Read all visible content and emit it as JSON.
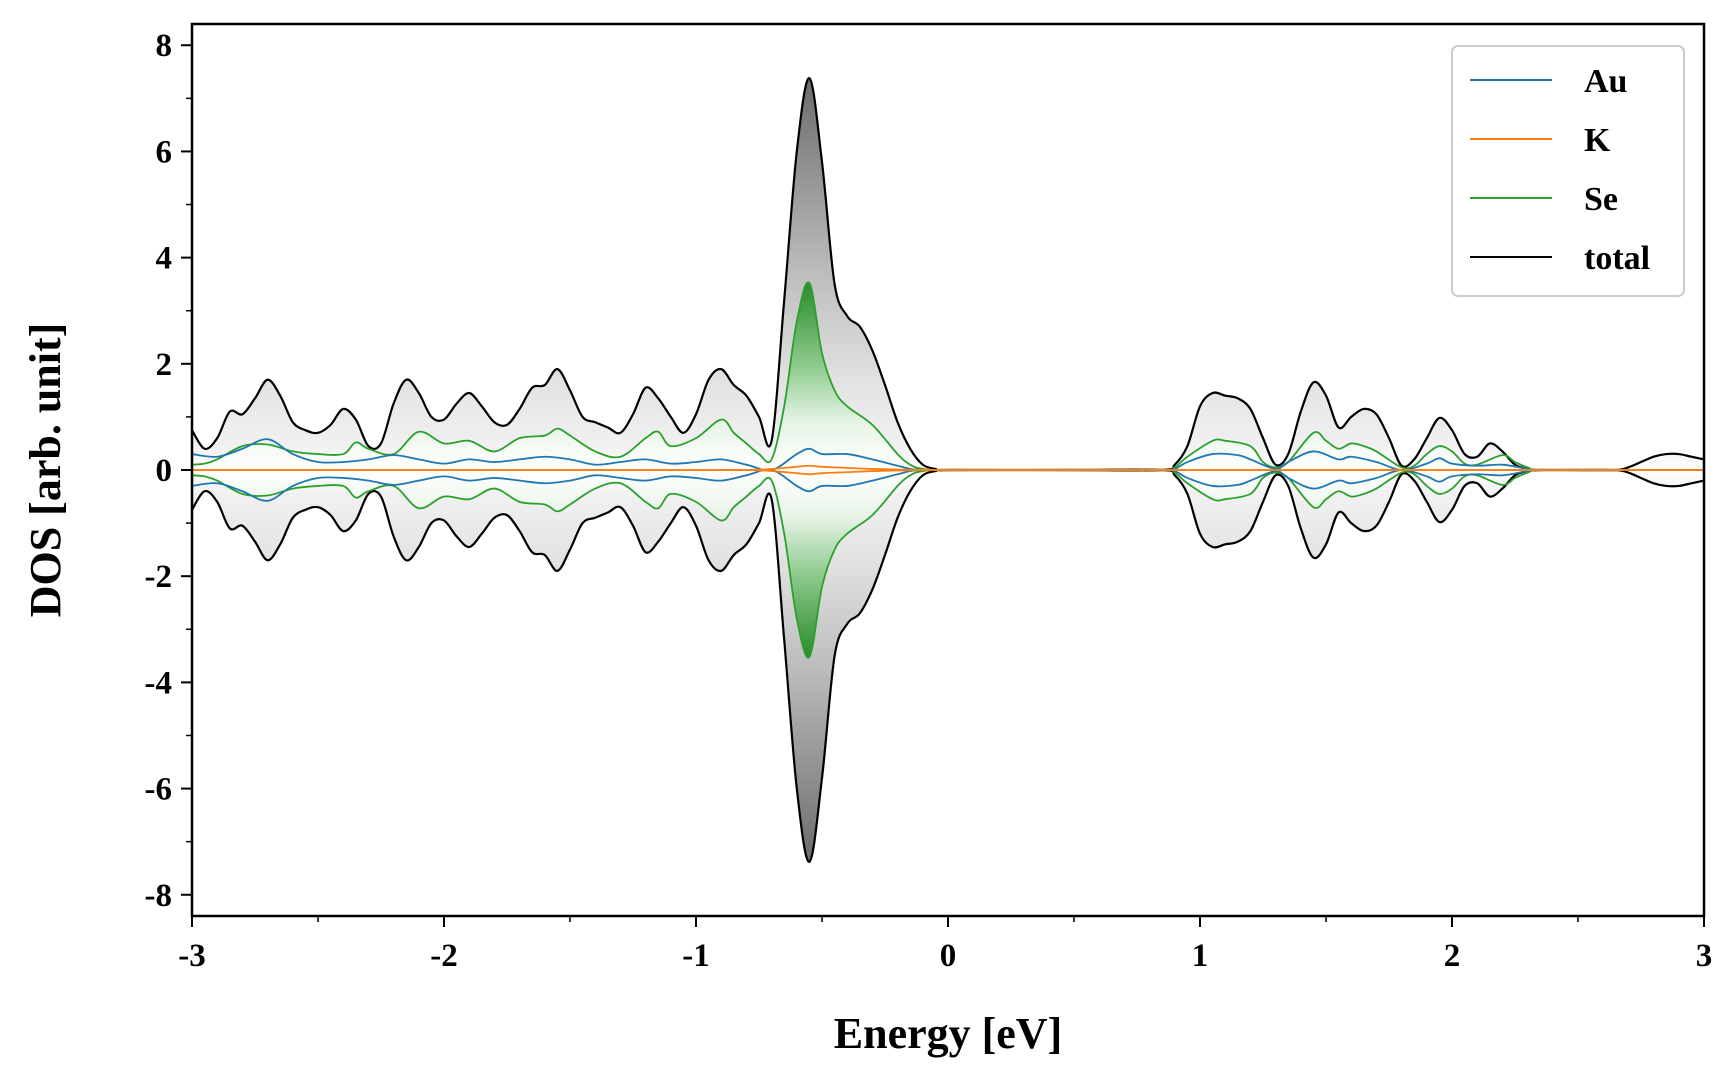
{
  "chart_data": {
    "type": "line",
    "title": "",
    "xlabel": "Energy [eV]",
    "ylabel": "DOS [arb. unit]",
    "xlim": [
      -3,
      3
    ],
    "ylim": [
      -8.4,
      8.4
    ],
    "x_ticks": [
      -3,
      -2,
      -1,
      0,
      1,
      2,
      3
    ],
    "x_tick_labels": [
      "-3",
      "-2",
      "-1",
      "0",
      "1",
      "2",
      "3"
    ],
    "y_ticks": [
      -8,
      -6,
      -4,
      -2,
      0,
      2,
      4,
      6,
      8
    ],
    "y_tick_labels": [
      "-8",
      "-6",
      "-4",
      "-2",
      "0",
      "2",
      "4",
      "6",
      "8"
    ],
    "grid": false,
    "legend_position": "top-right",
    "mirrored_negative": true,
    "series": [
      {
        "name": "Au",
        "color": "#1f77b4",
        "x": [
          -3.0,
          -2.9,
          -2.8,
          -2.7,
          -2.6,
          -2.5,
          -2.4,
          -2.3,
          -2.2,
          -2.1,
          -2.0,
          -1.9,
          -1.8,
          -1.7,
          -1.6,
          -1.5,
          -1.4,
          -1.3,
          -1.2,
          -1.1,
          -1.0,
          -0.9,
          -0.8,
          -0.7,
          -0.6,
          -0.55,
          -0.5,
          -0.4,
          -0.3,
          -0.2,
          -0.15,
          -0.1,
          0.0,
          0.5,
          0.85,
          0.9,
          0.95,
          1.05,
          1.15,
          1.2,
          1.3,
          1.35,
          1.45,
          1.55,
          1.6,
          1.7,
          1.8,
          1.9,
          1.95,
          2.0,
          2.1,
          2.2,
          2.3,
          2.35,
          2.6,
          2.7,
          2.8,
          2.9,
          3.0
        ],
        "values": [
          0.3,
          0.25,
          0.4,
          0.58,
          0.3,
          0.15,
          0.15,
          0.2,
          0.28,
          0.2,
          0.12,
          0.2,
          0.15,
          0.2,
          0.25,
          0.2,
          0.1,
          0.15,
          0.2,
          0.12,
          0.15,
          0.2,
          0.1,
          0.0,
          0.3,
          0.4,
          0.3,
          0.3,
          0.2,
          0.08,
          0.02,
          0.0,
          0.0,
          0.0,
          0.0,
          0.02,
          0.15,
          0.3,
          0.28,
          0.2,
          0.02,
          0.15,
          0.35,
          0.2,
          0.25,
          0.15,
          0.0,
          0.12,
          0.22,
          0.12,
          0.08,
          0.1,
          0.02,
          0.0,
          0.0,
          0.0,
          0.0,
          0.0,
          0.0
        ]
      },
      {
        "name": "K",
        "color": "#ff7f0e",
        "x": [
          -3.0,
          -2.0,
          -1.0,
          -0.8,
          -0.7,
          -0.6,
          -0.55,
          -0.5,
          -0.4,
          -0.3,
          -0.2,
          -0.1,
          0.0,
          1.0,
          2.0,
          3.0
        ],
        "values": [
          0.0,
          0.0,
          0.0,
          0.0,
          0.02,
          0.06,
          0.08,
          0.06,
          0.04,
          0.02,
          0.01,
          0.0,
          0.0,
          0.0,
          0.0,
          0.0
        ]
      },
      {
        "name": "Se",
        "color": "#2ca02c",
        "x": [
          -3.0,
          -2.95,
          -2.9,
          -2.8,
          -2.7,
          -2.6,
          -2.5,
          -2.4,
          -2.35,
          -2.3,
          -2.2,
          -2.1,
          -2.0,
          -1.9,
          -1.8,
          -1.7,
          -1.6,
          -1.55,
          -1.5,
          -1.4,
          -1.3,
          -1.2,
          -1.15,
          -1.1,
          -1.0,
          -0.9,
          -0.85,
          -0.8,
          -0.75,
          -0.7,
          -0.65,
          -0.6,
          -0.55,
          -0.5,
          -0.45,
          -0.4,
          -0.3,
          -0.2,
          -0.15,
          -0.1,
          0.0,
          0.5,
          0.85,
          0.9,
          0.95,
          1.05,
          1.1,
          1.2,
          1.25,
          1.3,
          1.35,
          1.45,
          1.5,
          1.55,
          1.6,
          1.65,
          1.7,
          1.8,
          1.85,
          1.9,
          1.95,
          2.0,
          2.05,
          2.1,
          2.2,
          2.25,
          2.3,
          2.35,
          2.6,
          2.7,
          2.8,
          2.9,
          3.0
        ],
        "values": [
          0.1,
          0.12,
          0.2,
          0.45,
          0.48,
          0.35,
          0.3,
          0.3,
          0.52,
          0.4,
          0.3,
          0.72,
          0.5,
          0.55,
          0.35,
          0.6,
          0.65,
          0.78,
          0.65,
          0.35,
          0.25,
          0.6,
          0.72,
          0.45,
          0.6,
          0.95,
          0.7,
          0.5,
          0.3,
          0.2,
          1.2,
          2.8,
          3.52,
          2.2,
          1.5,
          1.2,
          0.85,
          0.3,
          0.1,
          0.02,
          0.0,
          0.0,
          0.0,
          0.05,
          0.25,
          0.55,
          0.55,
          0.45,
          0.15,
          0.05,
          0.15,
          0.7,
          0.55,
          0.4,
          0.5,
          0.45,
          0.35,
          0.05,
          0.08,
          0.3,
          0.45,
          0.35,
          0.12,
          0.1,
          0.28,
          0.15,
          0.05,
          0.0,
          0.0,
          0.0,
          0.0,
          0.0,
          0.0
        ]
      },
      {
        "name": "total",
        "color": "#000000",
        "x": [
          -3.0,
          -2.95,
          -2.9,
          -2.85,
          -2.8,
          -2.75,
          -2.7,
          -2.65,
          -2.6,
          -2.55,
          -2.5,
          -2.45,
          -2.4,
          -2.35,
          -2.3,
          -2.25,
          -2.2,
          -2.15,
          -2.1,
          -2.05,
          -2.0,
          -1.95,
          -1.9,
          -1.85,
          -1.8,
          -1.75,
          -1.7,
          -1.65,
          -1.6,
          -1.55,
          -1.5,
          -1.45,
          -1.4,
          -1.35,
          -1.3,
          -1.25,
          -1.2,
          -1.15,
          -1.1,
          -1.05,
          -1.0,
          -0.95,
          -0.9,
          -0.85,
          -0.8,
          -0.75,
          -0.7,
          -0.65,
          -0.6,
          -0.55,
          -0.5,
          -0.45,
          -0.4,
          -0.35,
          -0.3,
          -0.25,
          -0.2,
          -0.15,
          -0.1,
          -0.05,
          0.0,
          0.5,
          0.85,
          0.9,
          0.95,
          1.0,
          1.05,
          1.1,
          1.15,
          1.2,
          1.25,
          1.3,
          1.35,
          1.4,
          1.45,
          1.5,
          1.55,
          1.6,
          1.65,
          1.7,
          1.75,
          1.8,
          1.85,
          1.9,
          1.95,
          2.0,
          2.05,
          2.1,
          2.15,
          2.2,
          2.25,
          2.3,
          2.35,
          2.5,
          2.65,
          2.7,
          2.75,
          2.8,
          2.85,
          2.9,
          2.95,
          3.0
        ],
        "values": [
          0.75,
          0.4,
          0.6,
          1.1,
          1.05,
          1.35,
          1.7,
          1.4,
          0.9,
          0.75,
          0.7,
          0.85,
          1.15,
          0.95,
          0.45,
          0.5,
          1.25,
          1.7,
          1.45,
          1.0,
          0.95,
          1.25,
          1.45,
          1.2,
          0.9,
          0.85,
          1.15,
          1.55,
          1.6,
          1.9,
          1.5,
          1.0,
          0.9,
          0.8,
          0.7,
          1.05,
          1.55,
          1.35,
          1.0,
          0.7,
          1.05,
          1.7,
          1.9,
          1.6,
          1.4,
          1.0,
          0.55,
          3.2,
          6.0,
          7.38,
          5.8,
          3.5,
          2.9,
          2.7,
          2.25,
          1.6,
          0.9,
          0.4,
          0.1,
          0.02,
          0.0,
          0.0,
          0.0,
          0.1,
          0.45,
          1.2,
          1.45,
          1.4,
          1.35,
          1.15,
          0.6,
          0.1,
          0.3,
          1.1,
          1.65,
          1.4,
          0.8,
          1.0,
          1.15,
          1.05,
          0.6,
          0.08,
          0.2,
          0.6,
          0.98,
          0.75,
          0.3,
          0.25,
          0.5,
          0.35,
          0.1,
          0.02,
          0.0,
          0.0,
          0.0,
          0.05,
          0.15,
          0.25,
          0.3,
          0.3,
          0.25,
          0.2
        ]
      }
    ]
  }
}
